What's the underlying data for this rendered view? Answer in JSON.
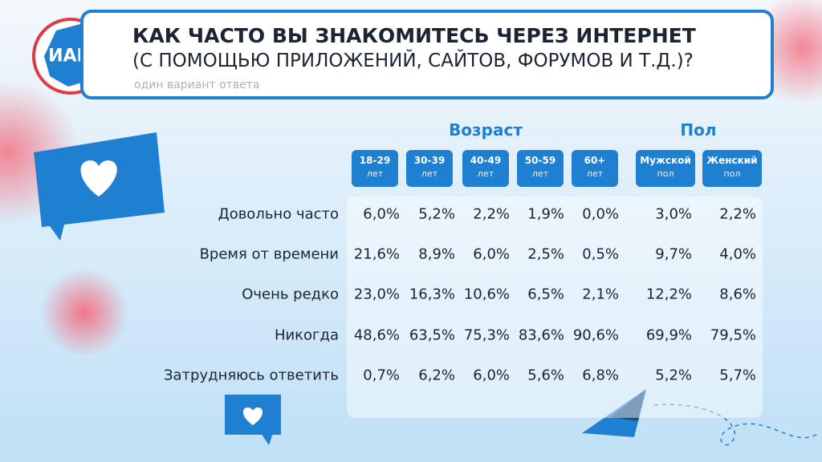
{
  "logo": "ИАЦ",
  "header": {
    "title_line1": "КАК ЧАСТО ВЫ ЗНАКОМИТЕСЬ ЧЕРЕЗ ИНТЕРНЕТ",
    "title_line2": "(С ПОМОЩЬЮ ПРИЛОЖЕНИЙ, САЙТОВ, ФОРУМОВ И Т.Д.)?",
    "subtitle": "один вариант ответа"
  },
  "table": {
    "groups": [
      "Возраст",
      "Пол"
    ],
    "columns": [
      {
        "top": "18-29",
        "bottom": "лет"
      },
      {
        "top": "30-39",
        "bottom": "лет"
      },
      {
        "top": "40-49",
        "bottom": "лет"
      },
      {
        "top": "50-59",
        "bottom": "лет"
      },
      {
        "top": "60+",
        "bottom": "лет"
      },
      {
        "top": "Мужской",
        "bottom": "пол"
      },
      {
        "top": "Женский",
        "bottom": "пол"
      }
    ],
    "rows": [
      {
        "label": "Довольно часто",
        "cells": [
          "6,0%",
          "5,2%",
          "2,2%",
          "1,9%",
          "0,0%",
          "3,0%",
          "2,2%"
        ]
      },
      {
        "label": "Время от времени",
        "cells": [
          "21,6%",
          "8,9%",
          "6,0%",
          "2,5%",
          "0,5%",
          "9,7%",
          "4,0%"
        ]
      },
      {
        "label": "Очень редко",
        "cells": [
          "23,0%",
          "16,3%",
          "10,6%",
          "6,5%",
          "2,1%",
          "12,2%",
          "8,6%"
        ]
      },
      {
        "label": "Никогда",
        "cells": [
          "48,6%",
          "63,5%",
          "75,3%",
          "83,6%",
          "90,6%",
          "69,9%",
          "79,5%"
        ]
      },
      {
        "label": "Затрудняюсь ответить",
        "cells": [
          "0,7%",
          "6,2%",
          "6,0%",
          "5,6%",
          "6,8%",
          "5,2%",
          "5,7%"
        ]
      }
    ]
  }
}
